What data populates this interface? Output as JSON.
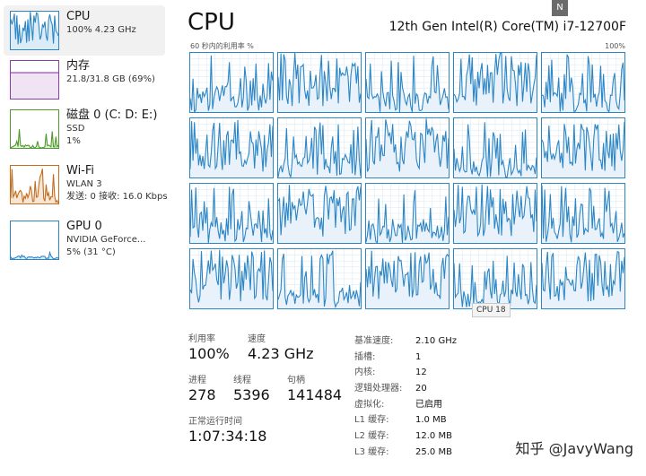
{
  "badge": "N",
  "sidebar": {
    "items": [
      {
        "title": "CPU",
        "subs": [
          "100% 4.23 GHz"
        ],
        "color": "#2c86c6",
        "fill": "#dcecf7"
      },
      {
        "title": "内存",
        "subs": [
          "21.8/31.8 GB (69%)"
        ],
        "color": "#8a3fa8",
        "fill": "#efe3f4"
      },
      {
        "title": "磁盘 0 (C: D: E:)",
        "subs": [
          "SSD",
          "1%"
        ],
        "color": "#4f9a2e",
        "fill": "#e6f1df"
      },
      {
        "title": "Wi-Fi",
        "subs": [
          "WLAN 3",
          "发送: 0 接收: 16.0 Kbps"
        ],
        "color": "#c46d1f",
        "fill": "#f6e6d6"
      },
      {
        "title": "GPU 0",
        "subs": [
          "NVIDIA GeForce...",
          "5% (31 °C)"
        ],
        "color": "#2c86c6",
        "fill": "#dcecf7"
      }
    ]
  },
  "header": {
    "title": "CPU",
    "model": "12th Gen Intel(R) Core(TM) i7-12700F"
  },
  "graph": {
    "left_label": "60 秒内的利用率 %",
    "right_label": "100%",
    "tooltip": "CPU 18",
    "line_color": "#2c86c6",
    "fill_color": "#e9f2fa",
    "grid_color": "#d7e6f2"
  },
  "stats": {
    "utilization_label": "利用率",
    "utilization": "100%",
    "speed_label": "速度",
    "speed": "4.23 GHz",
    "processes_label": "进程",
    "processes": "278",
    "threads_label": "线程",
    "threads": "5396",
    "handles_label": "句柄",
    "handles": "141484",
    "uptime_label": "正常运行时间",
    "uptime": "1:07:34:18"
  },
  "info": [
    {
      "k": "基准速度:",
      "v": "2.10 GHz"
    },
    {
      "k": "插槽:",
      "v": "1"
    },
    {
      "k": "内核:",
      "v": "12"
    },
    {
      "k": "逻辑处理器:",
      "v": "20"
    },
    {
      "k": "虚拟化:",
      "v": "已启用"
    },
    {
      "k": "L1 缓存:",
      "v": "1.0 MB"
    },
    {
      "k": "L2 缓存:",
      "v": "12.0 MB"
    },
    {
      "k": "L3 缓存:",
      "v": "25.0 MB"
    }
  ],
  "watermark": "知乎 @JavyWang"
}
